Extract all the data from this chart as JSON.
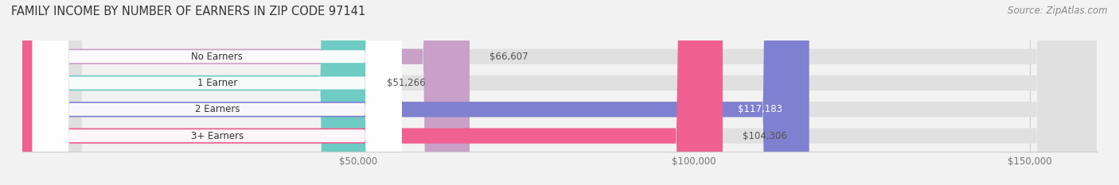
{
  "title": "FAMILY INCOME BY NUMBER OF EARNERS IN ZIP CODE 97141",
  "source": "Source: ZipAtlas.com",
  "categories": [
    "No Earners",
    "1 Earner",
    "2 Earners",
    "3+ Earners"
  ],
  "values": [
    66607,
    51266,
    117183,
    104306
  ],
  "bar_colors": [
    "#c9a0c8",
    "#6eccc4",
    "#8080d0",
    "#f06090"
  ],
  "value_inside": [
    false,
    false,
    true,
    false
  ],
  "value_labels": [
    "$66,607",
    "$51,266",
    "$117,183",
    "$104,306"
  ],
  "xmax": 160000,
  "xticks": [
    50000,
    100000,
    150000
  ],
  "xticklabels": [
    "$50,000",
    "$100,000",
    "$150,000"
  ],
  "background_color": "#f2f2f2",
  "bar_background": "#e0e0e0",
  "title_fontsize": 10.5,
  "source_fontsize": 8.5,
  "bar_height": 0.58,
  "figsize": [
    14.06,
    2.33
  ],
  "dpi": 100
}
